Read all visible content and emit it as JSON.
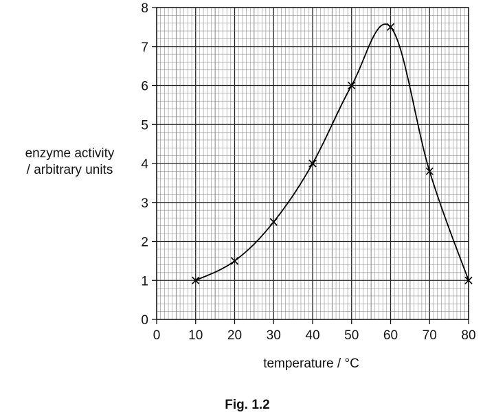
{
  "chart_data": {
    "type": "line",
    "xlabel": "temperature / °C",
    "ylabel_lines": [
      "enzyme activity",
      "/ arbitrary units"
    ],
    "caption": "Fig. 1.2",
    "xlim": [
      0,
      80
    ],
    "ylim": [
      0,
      8
    ],
    "x_ticks": [
      0,
      10,
      20,
      30,
      40,
      50,
      60,
      70,
      80
    ],
    "y_ticks": [
      0,
      1,
      2,
      3,
      4,
      5,
      6,
      7,
      8
    ],
    "grid": true,
    "marker": "x",
    "series": [
      {
        "x": [
          10,
          20,
          30,
          40,
          50,
          60,
          70,
          80
        ],
        "y": [
          1,
          1.5,
          2.5,
          4,
          6,
          7.5,
          3.8,
          1
        ]
      }
    ]
  }
}
